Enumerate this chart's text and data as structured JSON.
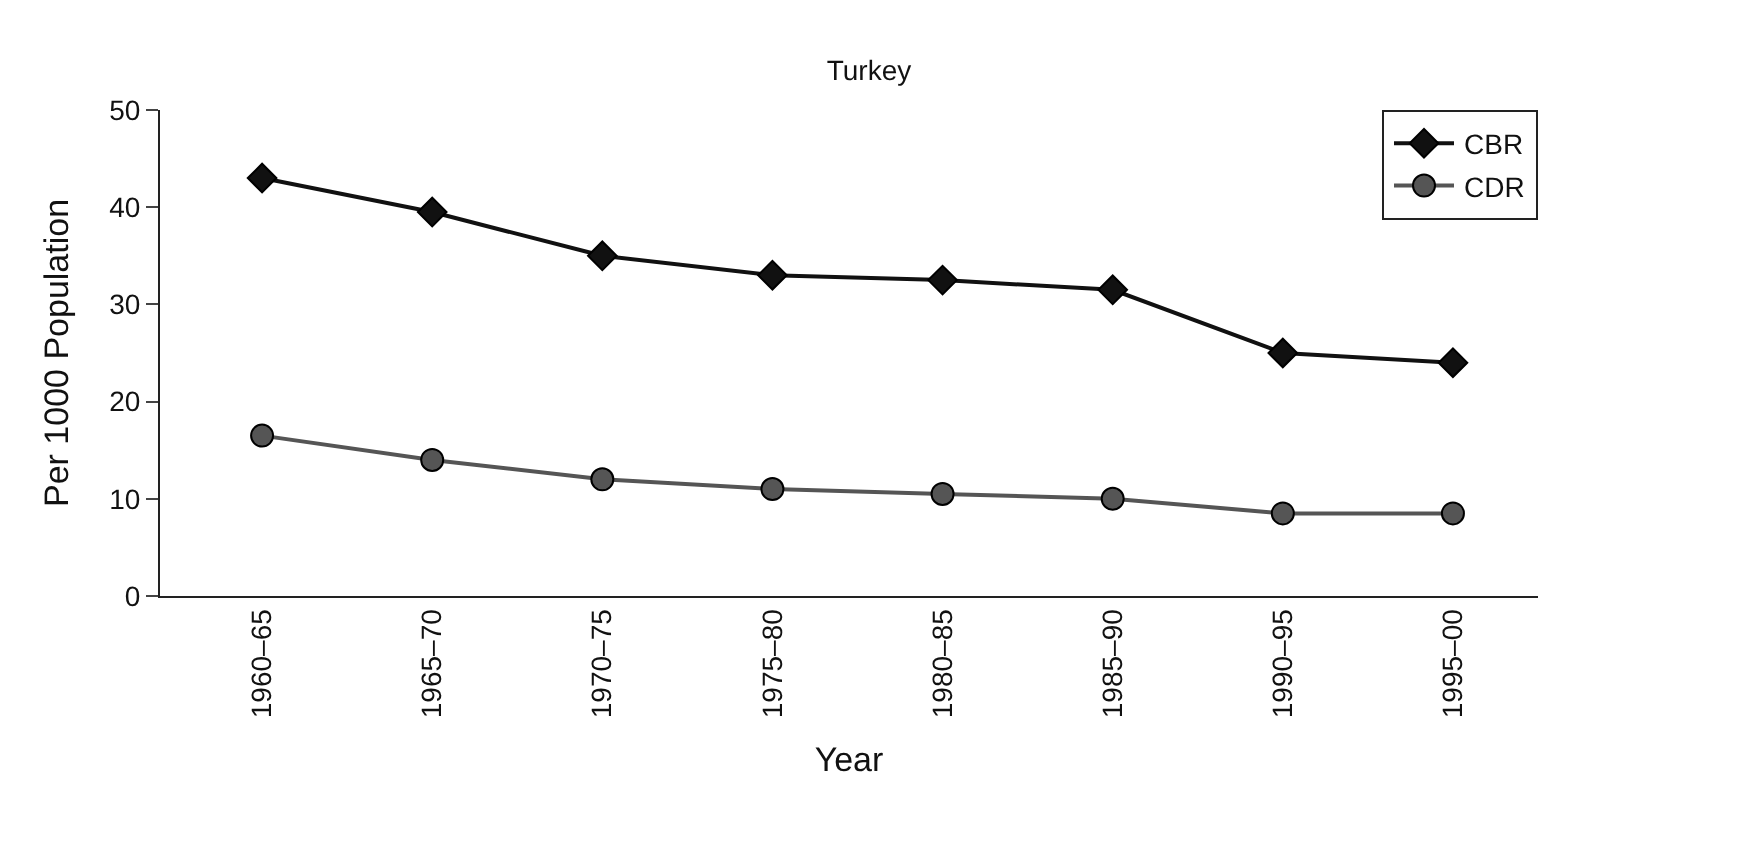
{
  "chart_data": {
    "type": "line",
    "title": "Turkey",
    "xlabel": "Year",
    "ylabel": "Per 1000 Population",
    "categories": [
      "1960–65",
      "1965–70",
      "1970–75",
      "1975–80",
      "1980–85",
      "1985–90",
      "1990–95",
      "1995–00"
    ],
    "series": [
      {
        "name": "CBR",
        "color": "#111111",
        "marker": "diamond",
        "values": [
          43,
          39.5,
          35,
          33,
          32.5,
          31.5,
          25,
          24
        ]
      },
      {
        "name": "CDR",
        "color": "#555555",
        "marker": "circle",
        "values": [
          16.5,
          14,
          12,
          11,
          10.5,
          10,
          8.5,
          8.5
        ]
      }
    ],
    "ylim": [
      0,
      50
    ],
    "yticks": [
      0,
      10,
      20,
      30,
      40,
      50
    ],
    "legend": "top right",
    "line_style": "solid"
  }
}
